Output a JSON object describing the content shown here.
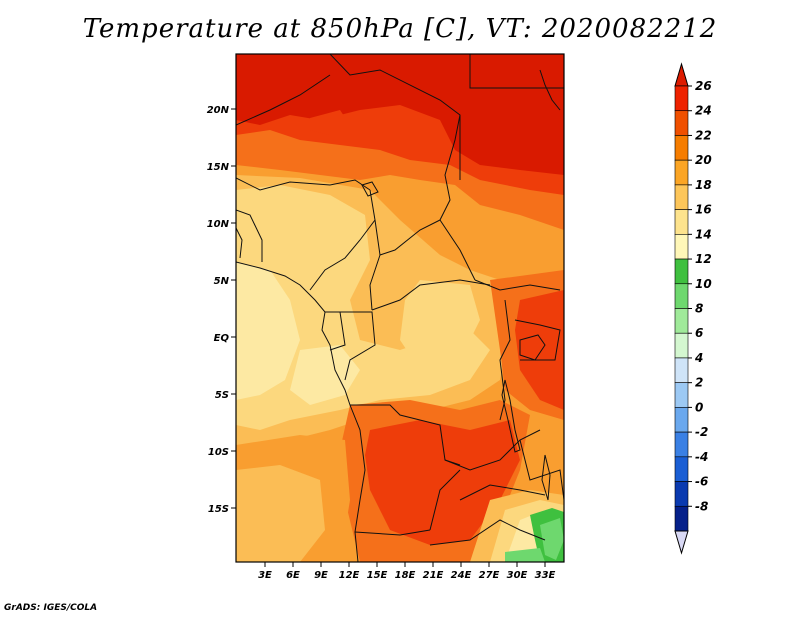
{
  "title": "Temperature at 850hPa [C], VT: 2020082212",
  "credit": "GrADS: IGES/COLA",
  "map": {
    "lat_labels": [
      "20N",
      "15N",
      "10N",
      "5N",
      "EQ",
      "5S",
      "10S",
      "15S"
    ],
    "lon_labels": [
      "3E",
      "6E",
      "9E",
      "12E",
      "15E",
      "18E",
      "21E",
      "24E",
      "27E",
      "30E",
      "33E"
    ]
  },
  "colorbar": {
    "labels": [
      "26",
      "24",
      "22",
      "20",
      "18",
      "16",
      "14",
      "12",
      "10",
      "8",
      "6",
      "4",
      "2",
      "0",
      "-2",
      "-4",
      "-6",
      "-8"
    ],
    "colors": [
      "#ee2200",
      "#f05000",
      "#f67d00",
      "#fba525",
      "#fdc65a",
      "#fde38d",
      "#fff7b8",
      "#3fc03f",
      "#6ed86e",
      "#a0ea9a",
      "#d4f7d0",
      "#cfe4f8",
      "#9cc9f4",
      "#6aa8ee",
      "#3a80e4",
      "#1a5ed4",
      "#0a3ab0",
      "#05208a",
      "#000a60"
    ],
    "end_colors": {
      "top": "#dd1b00",
      "bottom": "#d8d8f4"
    }
  },
  "palette": {
    "t26": "#d91a00",
    "t24": "#ee3d0a",
    "t22": "#f5701a",
    "t20": "#f99e30",
    "t18": "#fbbd55",
    "t16": "#fcd87e",
    "t14": "#fde9a3",
    "g12": "#3fc03f",
    "g10": "#6ed86e",
    "g8": "#a5eb9a",
    "g6": "#d6f8d0"
  }
}
